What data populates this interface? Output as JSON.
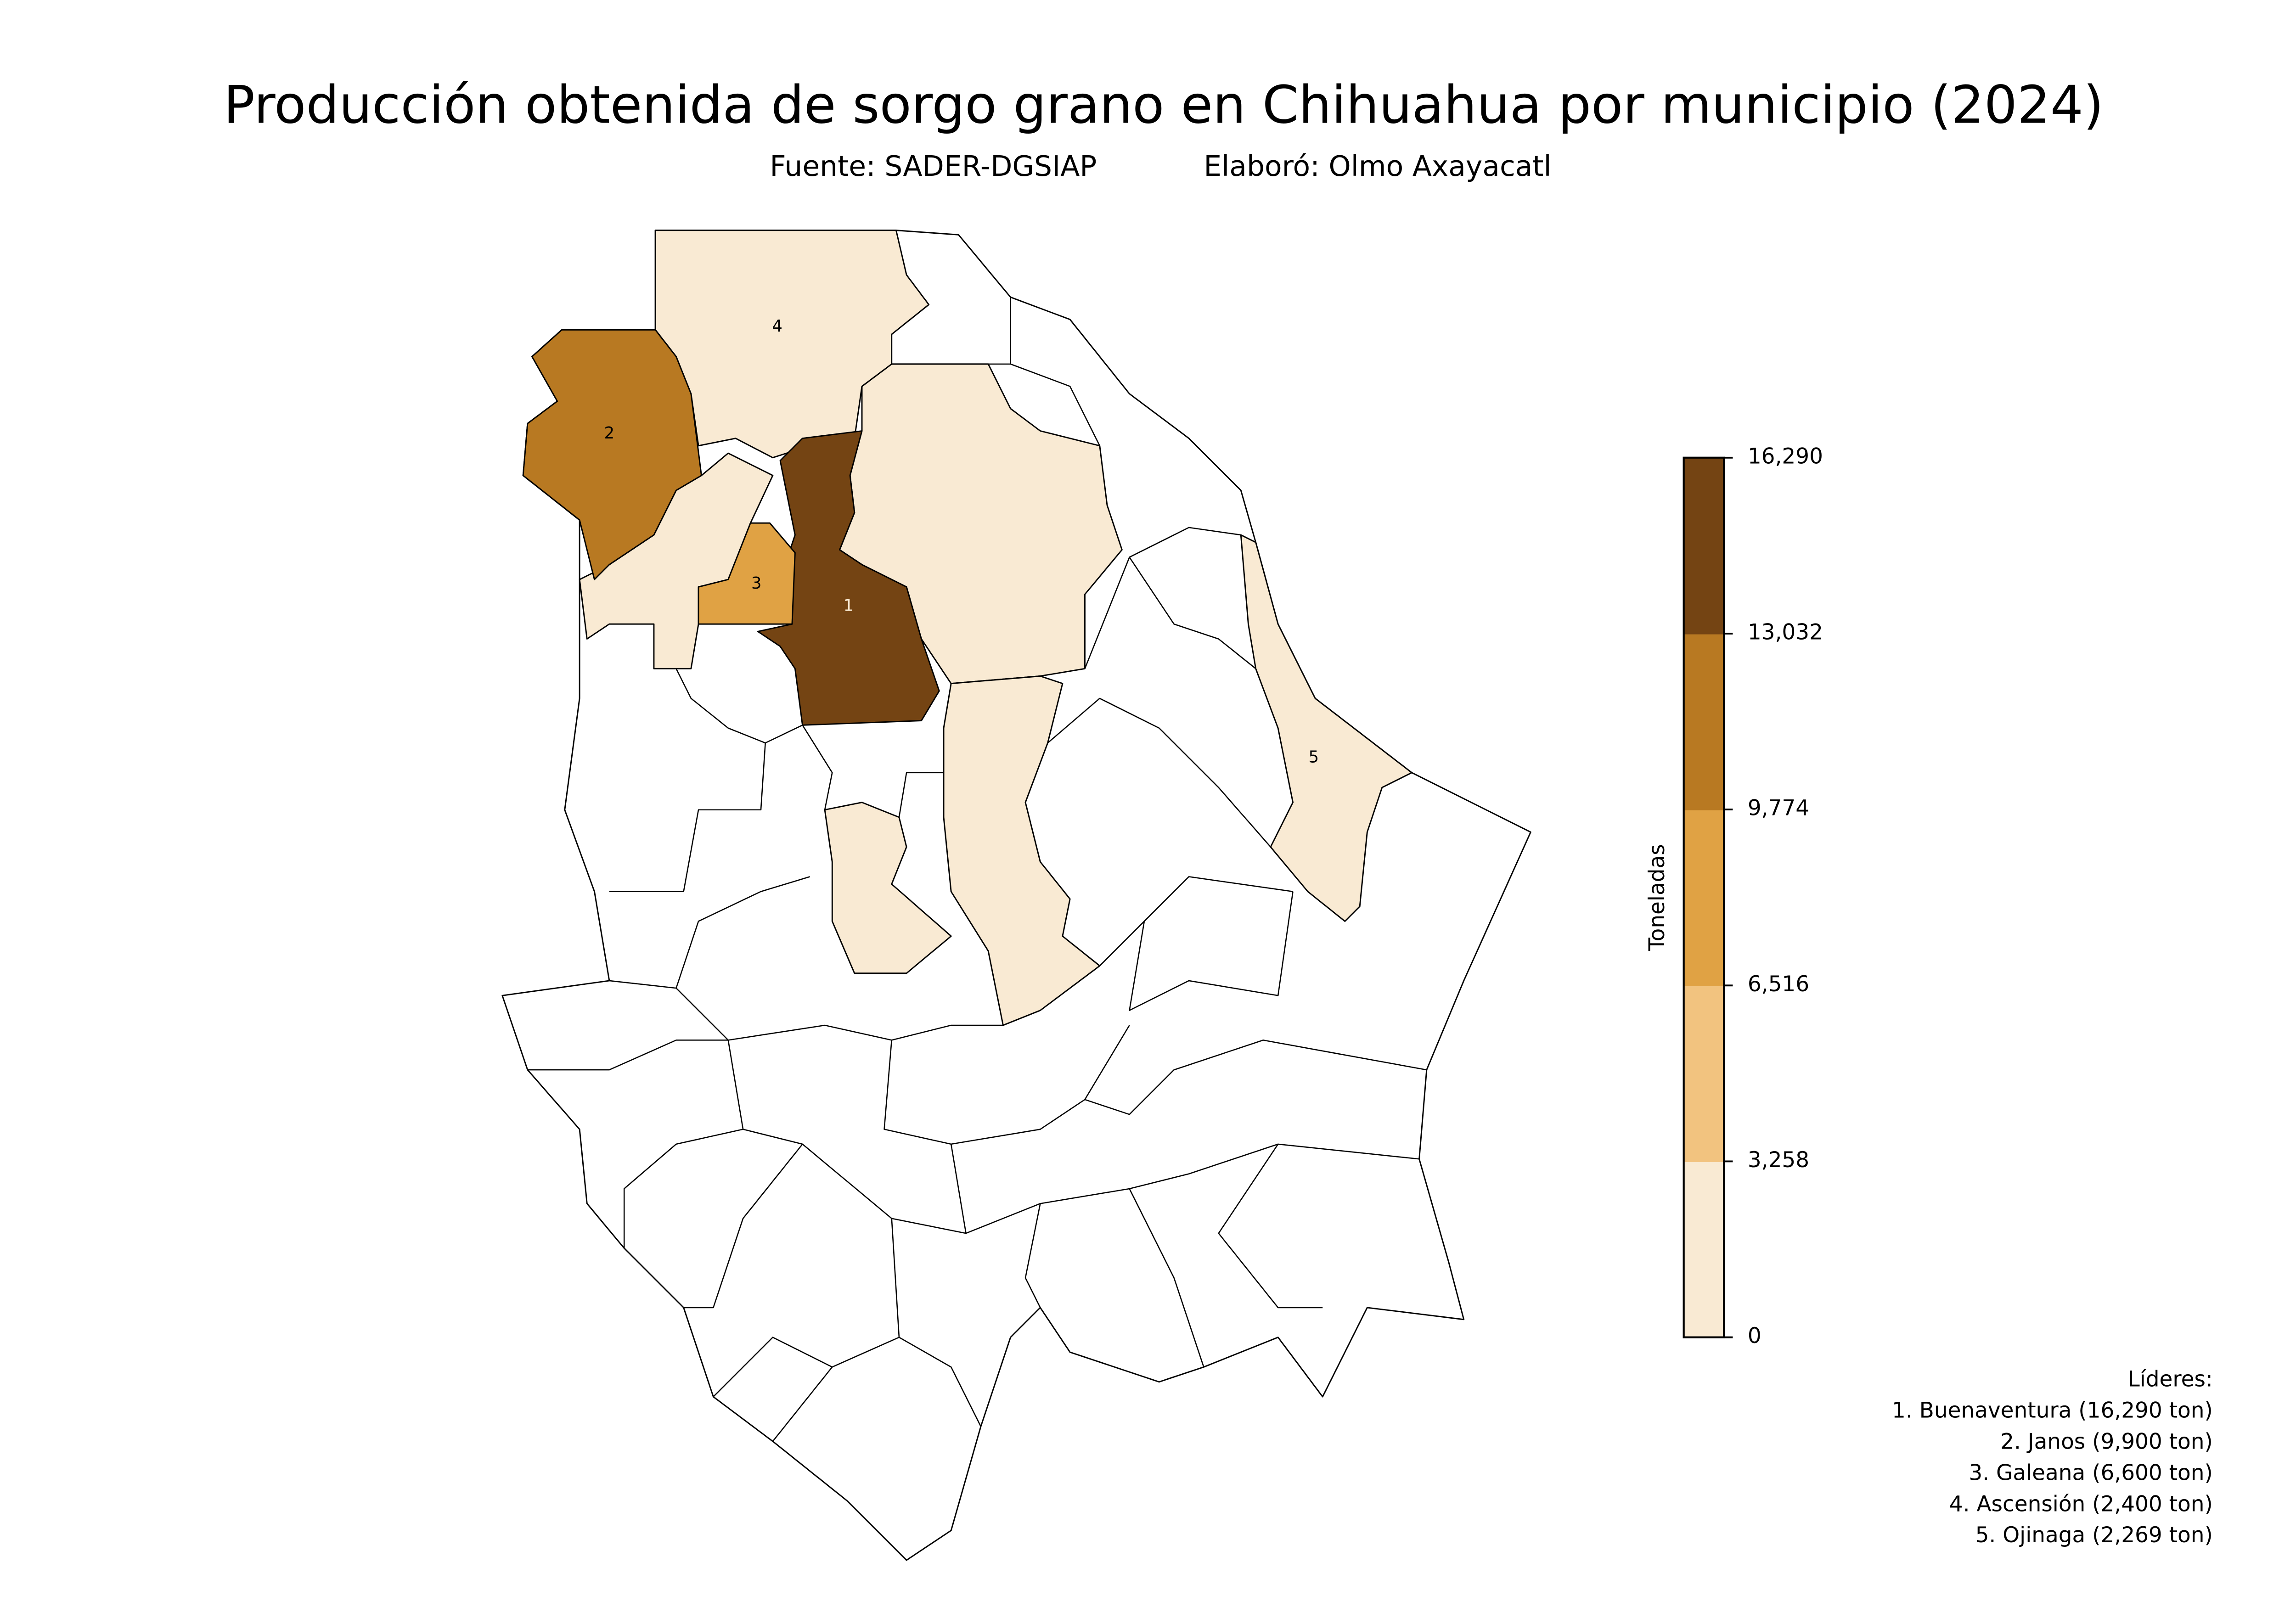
{
  "title": "Producción obtenida de sorgo grano en Chihuahua por municipio (2024)",
  "subtitle": {
    "source": "Fuente: SADER-DGSIAP",
    "author": "Elaboró: Olmo Axayacatl"
  },
  "colorbar": {
    "label": "Toneladas",
    "ticks": [
      "0",
      "3,258",
      "6,516",
      "9,774",
      "13,032",
      "16,290"
    ],
    "range": [
      0,
      16290
    ],
    "bin_colors": [
      "#f9ead3",
      "#f2c37f",
      "#e0a244",
      "#b87922",
      "#744413"
    ]
  },
  "map": {
    "no_data_color": "#ffffff",
    "municipalities": [
      {
        "rank": "1",
        "name": "Buenaventura",
        "value": 16290,
        "color": "#744413",
        "label_color": "#f9ead3"
      },
      {
        "rank": "2",
        "name": "Janos",
        "value": 9900,
        "color": "#b87922",
        "label_color": "#000000"
      },
      {
        "rank": "3",
        "name": "Galeana",
        "value": 6600,
        "color": "#e0a244",
        "label_color": "#000000"
      },
      {
        "rank": "4",
        "name": "Ascensión",
        "value": 2400,
        "color": "#f9ead3",
        "label_color": "#000000"
      },
      {
        "rank": "5",
        "name": "Ojinaga",
        "value": 2269,
        "color": "#f9ead3",
        "label_color": "#000000"
      }
    ]
  },
  "leaders": {
    "heading": "Líderes:",
    "items": [
      "1. Buenaventura (16,290 ton)",
      "2. Janos (9,900 ton)",
      "3. Galeana (6,600 ton)",
      "4. Ascensión (2,400 ton)",
      "5. Ojinaga (2,269 ton)"
    ]
  }
}
